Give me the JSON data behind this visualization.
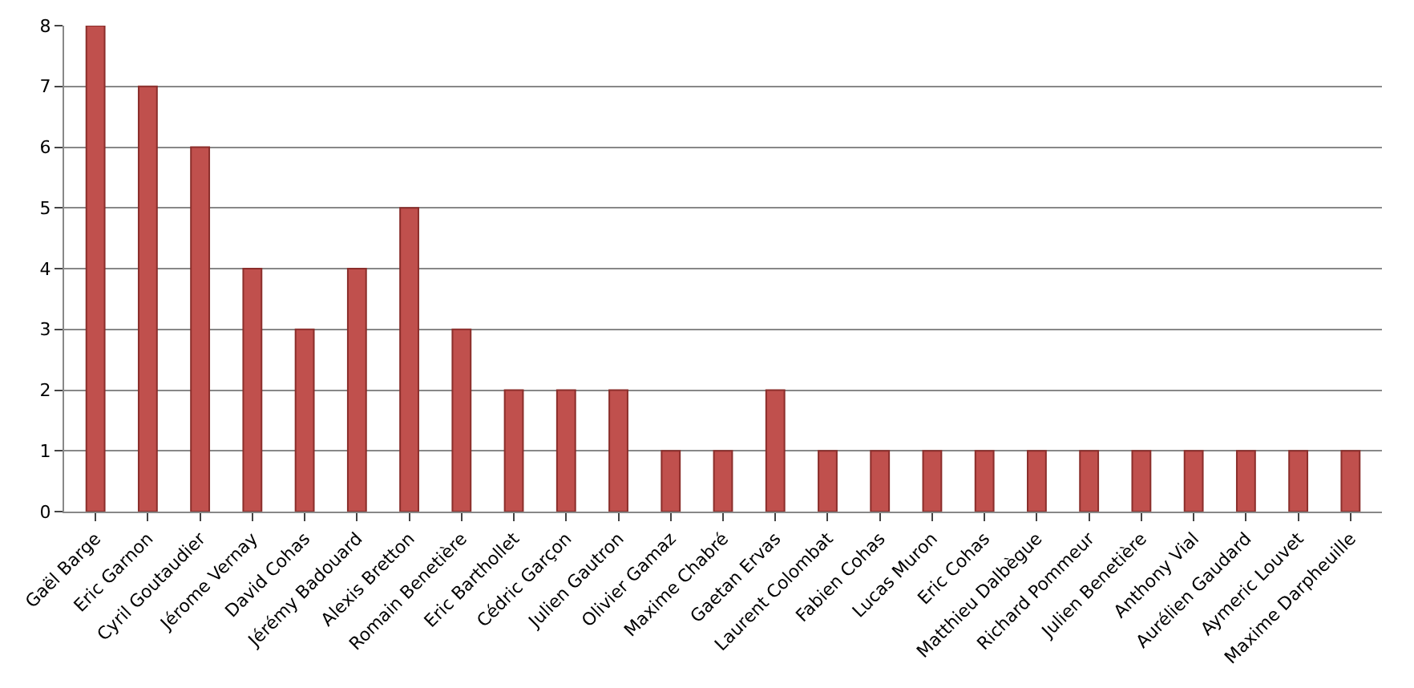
{
  "chart_data": {
    "type": "bar",
    "categories": [
      "Gaël Barge",
      "Eric Garnon",
      "Cyril Goutaudier",
      "Jérome Vernay",
      "David Cohas",
      "Jérémy Badouard",
      "Alexis Bretton",
      "Romain Benetière",
      "Eric Barthollet",
      "Cédric Garçon",
      "Julien Gautron",
      "Olivier Gamaz",
      "Maxime Chabré",
      "Gaetan Ervas",
      "Laurent Colombat",
      "Fabien Cohas",
      "Lucas Muron",
      "Eric Cohas",
      "Matthieu Dalbègue",
      "Richard Pommeur",
      "Julien Benetière",
      "Anthony Vial",
      "Aurélien Gaudard",
      "Aymeric Louvet",
      "Maxime Darpheuille"
    ],
    "values": [
      8,
      7,
      6,
      4,
      3,
      4,
      5,
      3,
      2,
      2,
      2,
      1,
      1,
      2,
      1,
      1,
      1,
      1,
      1,
      1,
      1,
      1,
      1,
      1,
      1
    ],
    "color": "#c0504d",
    "ylim": [
      0,
      8
    ],
    "yticks": [
      0,
      1,
      2,
      3,
      4,
      5,
      6,
      7,
      8
    ],
    "grid": "y",
    "legend": false
  }
}
